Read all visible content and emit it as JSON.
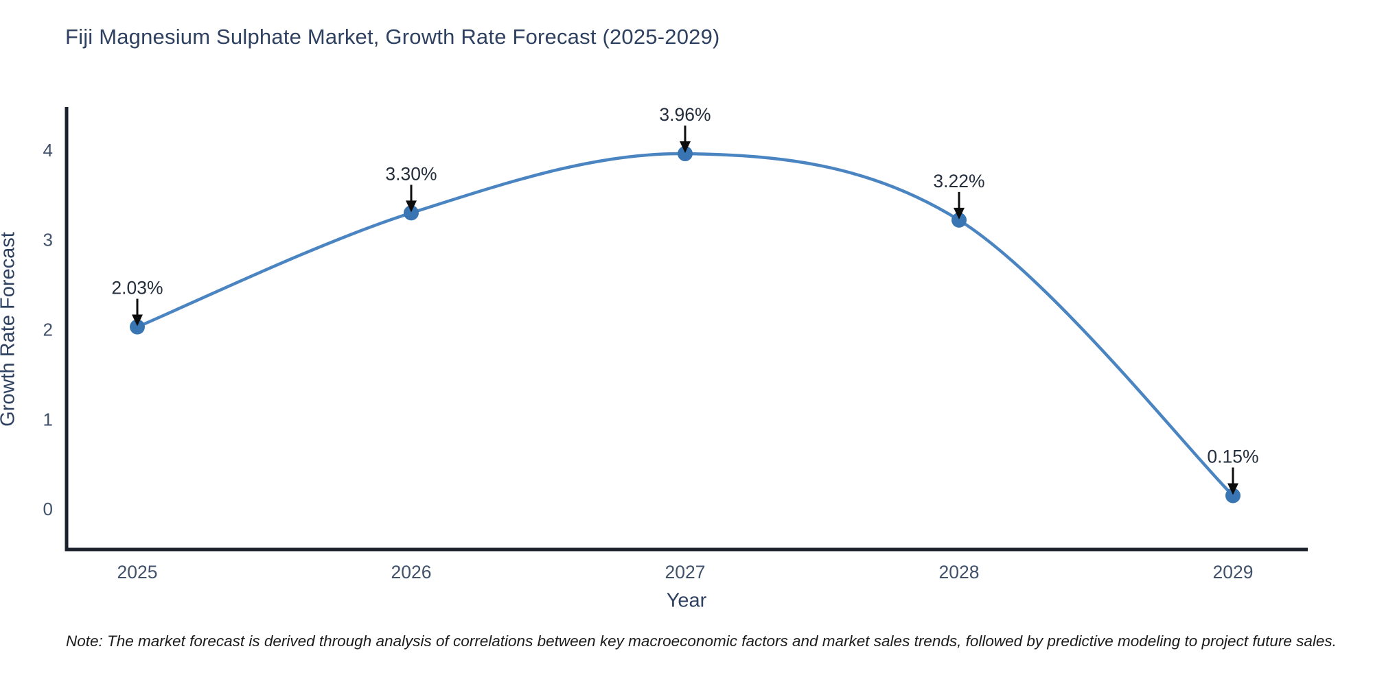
{
  "chart_data": {
    "type": "line",
    "title": "Fiji Magnesium Sulphate Market, Growth Rate Forecast (2025-2029)",
    "xlabel": "Year",
    "ylabel": "Growth Rate Forecast",
    "x": [
      "2025",
      "2026",
      "2027",
      "2028",
      "2029"
    ],
    "series": [
      {
        "name": "Growth Rate Forecast",
        "values": [
          2.03,
          3.3,
          3.96,
          3.22,
          0.15
        ]
      }
    ],
    "point_labels": [
      "2.03%",
      "3.30%",
      "3.96%",
      "3.22%",
      "0.15%"
    ],
    "yticks": [
      0,
      1,
      2,
      3,
      4
    ],
    "ylim": [
      -0.45,
      4.48
    ],
    "grid": false,
    "legend_position": "none",
    "line_shape": "spline",
    "annotation_style": "label-above-with-down-arrow",
    "colors": {
      "line": "#4a85c2",
      "marker": "#3875b2",
      "axis": "#1a202c",
      "title_text": "#2f4160",
      "tick_text": "#42526b",
      "annotation_text": "#242e3c",
      "arrow": "#0d0d0d"
    }
  },
  "note": {
    "text": "Note: The market forecast is derived through analysis of correlations between key macroeconomic factors and market sales trends, followed by predictive modeling to project future sales."
  }
}
